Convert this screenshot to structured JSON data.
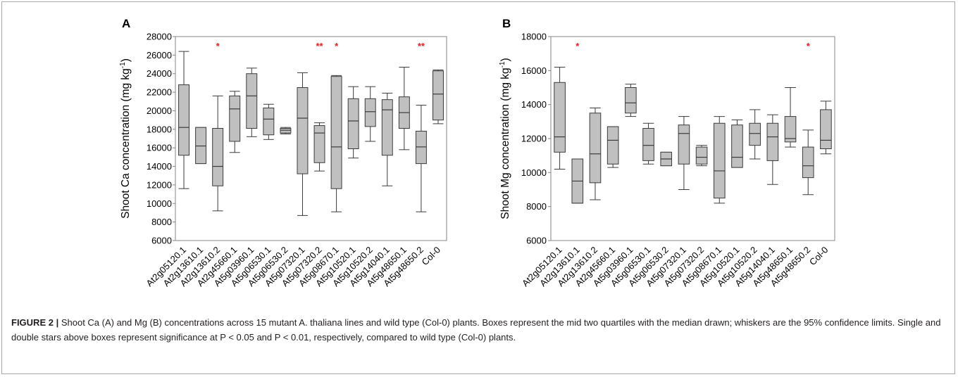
{
  "caption": {
    "label": "FIGURE 2 |",
    "text": "Shoot Ca (A) and Mg (B) concentrations across 15 mutant A. thaliana lines and wild type (Col-0) plants. Boxes represent the mid two quartiles with the median drawn; whiskers are the 95% confidence limits. Single and double stars above boxes represent significance at P < 0.05 and P < 0.01, respectively, compared to wild type (Col-0) plants."
  },
  "colors": {
    "box_fill": "#c0c0c0",
    "line": "#3b3b3b",
    "star": "#e31e24",
    "axis": "#868686"
  },
  "chart_data": [
    {
      "type": "box",
      "panel_label": "A",
      "ylabel_text": "Shoot Ca concentration (mg kg",
      "ylabel_sup": "-1",
      "ylabel_close": ")",
      "ylim": [
        6000,
        28000
      ],
      "yticks": [
        6000,
        8000,
        10000,
        12000,
        14000,
        16000,
        18000,
        20000,
        22000,
        24000,
        26000,
        28000
      ],
      "ytick_labels": [
        "6000",
        "8000",
        "10000",
        "12000",
        "14000",
        "16000",
        "18000",
        "20000",
        "22000",
        "24000",
        "26000",
        "28000"
      ],
      "categories": [
        "At2g05120.1",
        "At2g13610.1",
        "At2g13610.2",
        "At2g45660.1",
        "At5g03960.1",
        "At5g06530.1",
        "At5g06530.2",
        "At5g07320.1",
        "At5g07320.2",
        "At5g08670.1",
        "At5g10520.1",
        "At5g10520.2",
        "At5g14040.1",
        "At5g48650.1",
        "At5g48650.2",
        "Col-0"
      ],
      "boxes": [
        {
          "min": 11600,
          "q1": 15200,
          "median": 18200,
          "q3": 22800,
          "max": 26400,
          "star": ""
        },
        {
          "min": 14300,
          "q1": 14300,
          "median": 16200,
          "q3": 18200,
          "max": 18200,
          "star": ""
        },
        {
          "min": 9200,
          "q1": 11900,
          "median": 14000,
          "q3": 18100,
          "max": 21600,
          "star": "*"
        },
        {
          "min": 15500,
          "q1": 16700,
          "median": 20200,
          "q3": 21600,
          "max": 22100,
          "star": ""
        },
        {
          "min": 17200,
          "q1": 18100,
          "median": 21600,
          "q3": 24000,
          "max": 24600,
          "star": ""
        },
        {
          "min": 16900,
          "q1": 17400,
          "median": 19100,
          "q3": 20300,
          "max": 20700,
          "star": ""
        },
        {
          "min": 17500,
          "q1": 17600,
          "median": 17900,
          "q3": 18100,
          "max": 18200,
          "star": ""
        },
        {
          "min": 8700,
          "q1": 13200,
          "median": 19200,
          "q3": 22500,
          "max": 24100,
          "star": ""
        },
        {
          "min": 13500,
          "q1": 14400,
          "median": 17600,
          "q3": 18400,
          "max": 18700,
          "star": "**"
        },
        {
          "min": 9100,
          "q1": 11600,
          "median": 16100,
          "q3": 23700,
          "max": 23800,
          "star": "*"
        },
        {
          "min": 14900,
          "q1": 15900,
          "median": 18900,
          "q3": 21300,
          "max": 22600,
          "star": ""
        },
        {
          "min": 16700,
          "q1": 18300,
          "median": 19900,
          "q3": 21300,
          "max": 22600,
          "star": ""
        },
        {
          "min": 11900,
          "q1": 15200,
          "median": 20100,
          "q3": 21200,
          "max": 21900,
          "star": ""
        },
        {
          "min": 15800,
          "q1": 18100,
          "median": 19800,
          "q3": 21500,
          "max": 24700,
          "star": ""
        },
        {
          "min": 9100,
          "q1": 14300,
          "median": 16100,
          "q3": 17800,
          "max": 20600,
          "star": "**"
        },
        {
          "min": 18600,
          "q1": 19000,
          "median": 21800,
          "q3": 24300,
          "max": 24400,
          "star": ""
        }
      ]
    },
    {
      "type": "box",
      "panel_label": "B",
      "ylabel_text": "Shoot Mg concentration (mg kg",
      "ylabel_sup": "-1",
      "ylabel_close": ")",
      "ylim": [
        6000,
        18000
      ],
      "yticks": [
        6000,
        8000,
        10000,
        12000,
        14000,
        16000,
        18000
      ],
      "ytick_labels": [
        "6000",
        "8000",
        "10000",
        "12000",
        "14000",
        "16000",
        "18000"
      ],
      "categories": [
        "At2g05120.1",
        "At2g13610.1",
        "At2g13610.2",
        "At2g45660.1",
        "At5g03960.1",
        "At5g06530.1",
        "At5g06530.2",
        "At5g07320.1",
        "At5g07320.2",
        "At5g08670.1",
        "At5g10520.1",
        "At5g10520.2",
        "At5g14040.1",
        "At5g48650.1",
        "At5g48650.2",
        "Col-0"
      ],
      "boxes": [
        {
          "min": 10200,
          "q1": 11200,
          "median": 12100,
          "q3": 15300,
          "max": 16200,
          "star": ""
        },
        {
          "min": 8200,
          "q1": 8200,
          "median": 9500,
          "q3": 10800,
          "max": 10800,
          "star": "*"
        },
        {
          "min": 8400,
          "q1": 9400,
          "median": 11100,
          "q3": 13500,
          "max": 13800,
          "star": ""
        },
        {
          "min": 10300,
          "q1": 10500,
          "median": 11900,
          "q3": 12700,
          "max": 12700,
          "star": ""
        },
        {
          "min": 13300,
          "q1": 13500,
          "median": 14100,
          "q3": 15000,
          "max": 15200,
          "star": ""
        },
        {
          "min": 10500,
          "q1": 10700,
          "median": 11600,
          "q3": 12600,
          "max": 12900,
          "star": ""
        },
        {
          "min": 10400,
          "q1": 10400,
          "median": 10800,
          "q3": 11200,
          "max": 11200,
          "star": ""
        },
        {
          "min": 9000,
          "q1": 10500,
          "median": 12300,
          "q3": 12800,
          "max": 13300,
          "star": ""
        },
        {
          "min": 10400,
          "q1": 10500,
          "median": 10900,
          "q3": 11500,
          "max": 11600,
          "star": ""
        },
        {
          "min": 8200,
          "q1": 8500,
          "median": 10100,
          "q3": 12900,
          "max": 13300,
          "star": ""
        },
        {
          "min": 10300,
          "q1": 10300,
          "median": 10900,
          "q3": 12800,
          "max": 13100,
          "star": ""
        },
        {
          "min": 10800,
          "q1": 11600,
          "median": 12300,
          "q3": 12900,
          "max": 13700,
          "star": ""
        },
        {
          "min": 9300,
          "q1": 10700,
          "median": 12100,
          "q3": 12900,
          "max": 13400,
          "star": ""
        },
        {
          "min": 11500,
          "q1": 11800,
          "median": 12000,
          "q3": 13300,
          "max": 15000,
          "star": ""
        },
        {
          "min": 8700,
          "q1": 9700,
          "median": 10400,
          "q3": 11500,
          "max": 12500,
          "star": "*"
        },
        {
          "min": 11100,
          "q1": 11400,
          "median": 11900,
          "q3": 13700,
          "max": 14200,
          "star": ""
        }
      ]
    }
  ]
}
